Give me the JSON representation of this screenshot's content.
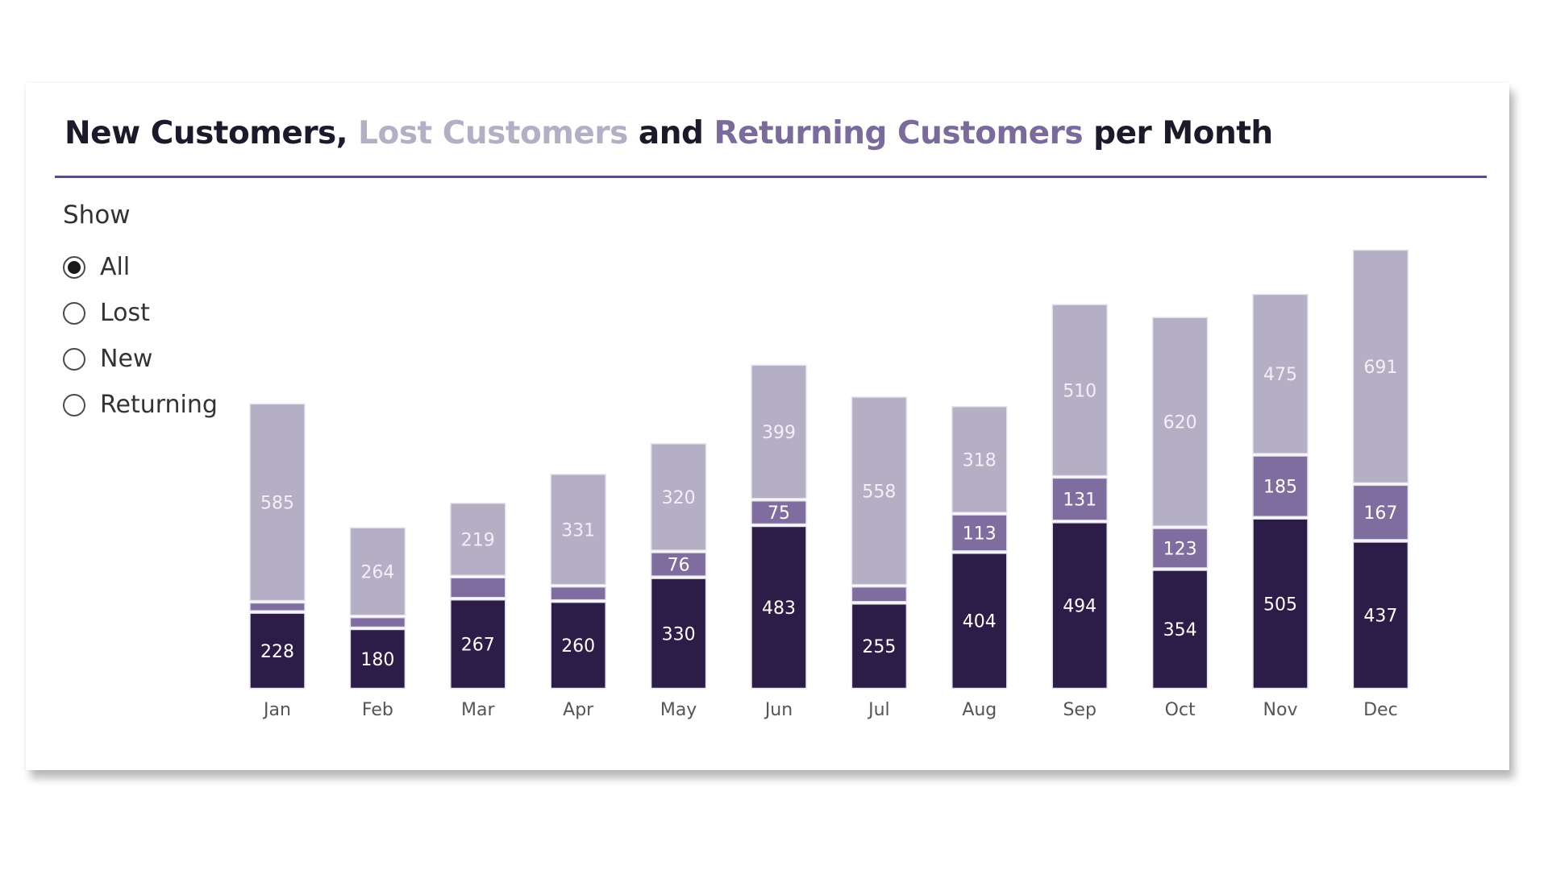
{
  "title": {
    "part1": "New Customers,",
    "part2": "Lost Customers",
    "part3": "and",
    "part4": "Returning Customers",
    "part5": "per Month"
  },
  "filter": {
    "label": "Show",
    "options": [
      "All",
      "Lost",
      "New",
      "Returning"
    ],
    "selected": "All"
  },
  "colors": {
    "new": "#2b1d47",
    "returning": "#7e6d9e",
    "lost": "#b4afc5",
    "title_rule": "#5a4c7d"
  },
  "chart_data": {
    "type": "bar",
    "stacked": true,
    "categories": [
      "Jan",
      "Feb",
      "Mar",
      "Apr",
      "May",
      "Jun",
      "Jul",
      "Aug",
      "Sep",
      "Oct",
      "Nov",
      "Dec"
    ],
    "series": [
      {
        "key": "new",
        "name": "New Customers",
        "values": [
          228,
          180,
          267,
          260,
          330,
          483,
          255,
          404,
          494,
          354,
          505,
          437
        ]
      },
      {
        "key": "returning",
        "name": "Returning Customers",
        "values": [
          30,
          35,
          65,
          45,
          76,
          75,
          50,
          113,
          131,
          123,
          185,
          167
        ]
      },
      {
        "key": "lost",
        "name": "Lost Customers",
        "values": [
          585,
          264,
          219,
          331,
          320,
          399,
          558,
          318,
          510,
          620,
          475,
          691
        ]
      }
    ],
    "labels_shown": {
      "new": [
        228,
        180,
        267,
        260,
        330,
        483,
        255,
        404,
        494,
        354,
        505,
        437
      ],
      "returning": [
        null,
        null,
        null,
        null,
        76,
        75,
        null,
        113,
        131,
        123,
        185,
        167
      ],
      "lost": [
        585,
        264,
        219,
        331,
        320,
        399,
        558,
        318,
        510,
        620,
        475,
        691
      ]
    },
    "ylim": [
      0,
      1295
    ],
    "grid": false,
    "legend": "none"
  }
}
